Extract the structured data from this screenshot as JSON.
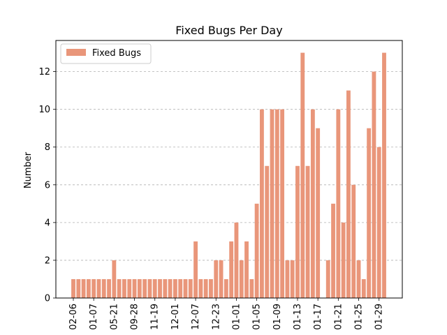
{
  "chart_data": {
    "type": "bar",
    "title": "Fixed Bugs Per Day",
    "xlabel": "",
    "ylabel": "Number",
    "ylim": [
      0,
      13.65
    ],
    "yticks": [
      0,
      2,
      4,
      6,
      8,
      10,
      12
    ],
    "grid": "y-dashed",
    "legend_position": "top-left",
    "series": [
      {
        "name": "Fixed Bugs",
        "color": "#e9967a",
        "values": [
          1,
          1,
          1,
          1,
          1,
          1,
          1,
          1,
          2,
          1,
          1,
          1,
          1,
          1,
          1,
          1,
          1,
          1,
          1,
          1,
          1,
          1,
          1,
          1,
          3,
          1,
          1,
          1,
          2,
          2,
          1,
          3,
          4,
          2,
          3,
          1,
          5,
          10,
          7,
          10,
          10,
          10,
          2,
          2,
          7,
          13,
          7,
          10,
          9,
          0,
          2,
          5,
          10,
          4,
          11,
          6,
          2,
          1,
          9,
          12,
          8,
          13
        ]
      }
    ],
    "tick_labels": [
      {
        "index": 0,
        "label": "02-06"
      },
      {
        "index": 4,
        "label": "01-07"
      },
      {
        "index": 8,
        "label": "05-21"
      },
      {
        "index": 12,
        "label": "09-28"
      },
      {
        "index": 16,
        "label": "11-19"
      },
      {
        "index": 20,
        "label": "12-01"
      },
      {
        "index": 24,
        "label": "12-07"
      },
      {
        "index": 28,
        "label": "12-23"
      },
      {
        "index": 32,
        "label": "01-01"
      },
      {
        "index": 36,
        "label": "01-05"
      },
      {
        "index": 40,
        "label": "01-09"
      },
      {
        "index": 44,
        "label": "01-13"
      },
      {
        "index": 48,
        "label": "01-17"
      },
      {
        "index": 52,
        "label": "01-21"
      },
      {
        "index": 56,
        "label": "01-25"
      },
      {
        "index": 60,
        "label": "01-29"
      }
    ]
  }
}
